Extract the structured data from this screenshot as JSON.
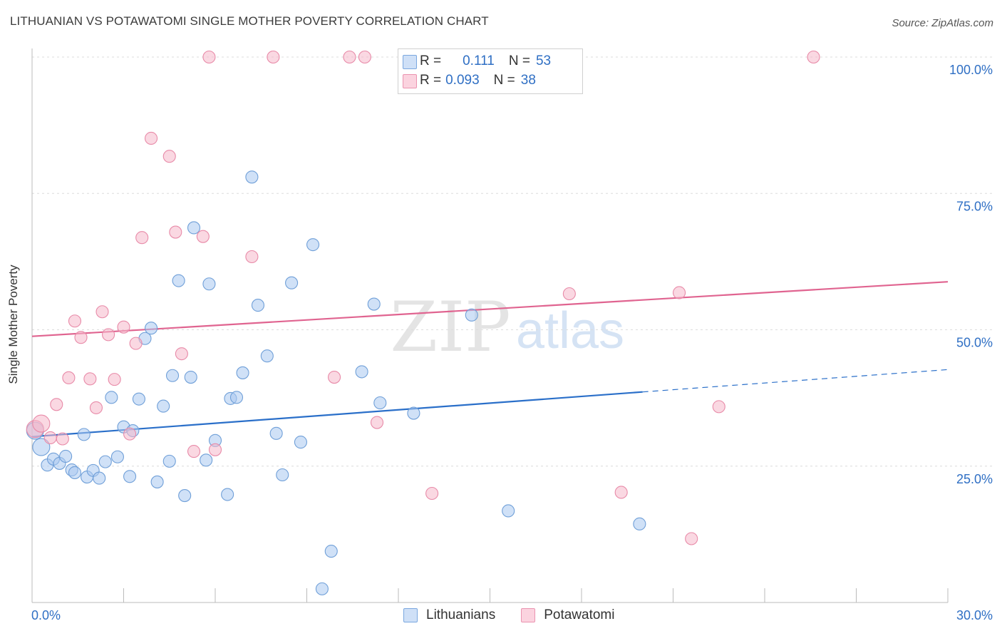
{
  "title": "LITHUANIAN VS POTAWATOMI SINGLE MOTHER POVERTY CORRELATION CHART",
  "source": "Source: ZipAtlas.com",
  "watermark": {
    "zip": "ZIP",
    "atlas": "atlas"
  },
  "legend": {
    "rows": [
      {
        "r_label": "R =",
        "r_value": "0.111",
        "n_label": "N =",
        "n_value": "53",
        "color": "#a9c8f0"
      },
      {
        "r_label": "R =",
        "r_value": "0.093",
        "n_label": "N =",
        "n_value": "38",
        "color": "#f5b8cb"
      }
    ]
  },
  "bottom_legend": [
    {
      "label": "Lithuanians",
      "color": "#a9c8f0"
    },
    {
      "label": "Potawatomi",
      "color": "#f5b8cb"
    }
  ],
  "colors": {
    "blue_fill": "#a9c8f0",
    "blue_stroke": "#6f9fd8",
    "blue_line": "#2a6fc9",
    "pink_fill": "#f5b8cb",
    "pink_stroke": "#e88aa8",
    "pink_line": "#e06490",
    "axis_text": "#2f6fc4",
    "grid": "#dcdcdc"
  },
  "chart_data": {
    "type": "scatter",
    "title": "LITHUANIAN VS POTAWATOMI SINGLE MOTHER POVERTY CORRELATION CHART",
    "xlabel": "",
    "ylabel": "Single Mother Poverty",
    "xlim": [
      0,
      30
    ],
    "ylim": [
      0,
      100
    ],
    "x_tick_labels": [
      "0.0%",
      "30.0%"
    ],
    "y_tick_labels": [
      "100.0%",
      "75.0%",
      "50.0%",
      "25.0%"
    ],
    "y_ticks": [
      100,
      75,
      50,
      25
    ],
    "grid": true,
    "series": [
      {
        "name": "Lithuanians",
        "r": 0.111,
        "n": 53,
        "trend": {
          "x0": 0,
          "y0": 30.4,
          "x1": 20,
          "y1": 38.6,
          "dash_x1": 30,
          "dash_y1": 42.7
        },
        "points": [
          [
            0.1,
            31.5
          ],
          [
            0.3,
            28.5
          ],
          [
            0.5,
            25.2
          ],
          [
            0.7,
            26.3
          ],
          [
            0.9,
            25.5
          ],
          [
            1.1,
            26.8
          ],
          [
            1.3,
            24.3
          ],
          [
            1.4,
            23.8
          ],
          [
            1.7,
            30.8
          ],
          [
            1.8,
            23.0
          ],
          [
            2.0,
            24.2
          ],
          [
            2.2,
            22.8
          ],
          [
            2.4,
            25.8
          ],
          [
            2.6,
            37.6
          ],
          [
            2.8,
            26.7
          ],
          [
            3.0,
            32.2
          ],
          [
            3.2,
            23.1
          ],
          [
            3.3,
            31.5
          ],
          [
            3.5,
            37.3
          ],
          [
            3.7,
            48.4
          ],
          [
            3.9,
            50.3
          ],
          [
            4.1,
            22.1
          ],
          [
            4.3,
            36.0
          ],
          [
            4.5,
            25.9
          ],
          [
            4.6,
            41.6
          ],
          [
            4.8,
            59.0
          ],
          [
            5.0,
            19.6
          ],
          [
            5.2,
            41.3
          ],
          [
            5.3,
            68.7
          ],
          [
            5.7,
            26.1
          ],
          [
            5.8,
            58.4
          ],
          [
            6.0,
            29.7
          ],
          [
            6.4,
            19.8
          ],
          [
            6.5,
            37.4
          ],
          [
            6.7,
            37.6
          ],
          [
            6.9,
            42.1
          ],
          [
            7.2,
            78.0
          ],
          [
            7.4,
            54.5
          ],
          [
            7.7,
            45.2
          ],
          [
            8.0,
            31.0
          ],
          [
            8.2,
            23.4
          ],
          [
            8.5,
            58.6
          ],
          [
            8.8,
            29.4
          ],
          [
            9.2,
            65.6
          ],
          [
            9.5,
            2.5
          ],
          [
            9.8,
            9.4
          ],
          [
            10.8,
            42.3
          ],
          [
            11.2,
            54.7
          ],
          [
            11.4,
            36.6
          ],
          [
            12.5,
            34.7
          ],
          [
            14.4,
            52.7
          ],
          [
            15.6,
            16.8
          ],
          [
            19.9,
            14.4
          ]
        ]
      },
      {
        "name": "Potawatomi",
        "r": 0.093,
        "n": 38,
        "trend": {
          "x0": 0,
          "y0": 48.8,
          "x1": 30,
          "y1": 58.8
        },
        "points": [
          [
            0.1,
            31.8
          ],
          [
            0.3,
            32.8
          ],
          [
            0.6,
            30.2
          ],
          [
            0.8,
            36.3
          ],
          [
            1.0,
            30.0
          ],
          [
            1.2,
            41.2
          ],
          [
            1.4,
            51.6
          ],
          [
            1.6,
            48.6
          ],
          [
            1.9,
            41.0
          ],
          [
            2.1,
            35.7
          ],
          [
            2.3,
            53.3
          ],
          [
            2.5,
            49.1
          ],
          [
            2.7,
            40.9
          ],
          [
            3.0,
            50.5
          ],
          [
            3.2,
            30.9
          ],
          [
            3.4,
            47.5
          ],
          [
            3.6,
            66.9
          ],
          [
            3.9,
            85.1
          ],
          [
            4.5,
            81.8
          ],
          [
            4.7,
            67.9
          ],
          [
            4.9,
            45.6
          ],
          [
            5.3,
            27.7
          ],
          [
            5.6,
            67.1
          ],
          [
            5.8,
            100
          ],
          [
            6.0,
            28.0
          ],
          [
            7.2,
            63.4
          ],
          [
            7.9,
            100
          ],
          [
            9.9,
            41.3
          ],
          [
            10.4,
            100
          ],
          [
            10.9,
            100
          ],
          [
            11.3,
            33.0
          ],
          [
            13.1,
            20.0
          ],
          [
            17.6,
            56.6
          ],
          [
            19.3,
            20.2
          ],
          [
            21.2,
            56.8
          ],
          [
            21.6,
            11.7
          ],
          [
            22.5,
            35.9
          ],
          [
            25.6,
            100
          ]
        ]
      }
    ]
  }
}
